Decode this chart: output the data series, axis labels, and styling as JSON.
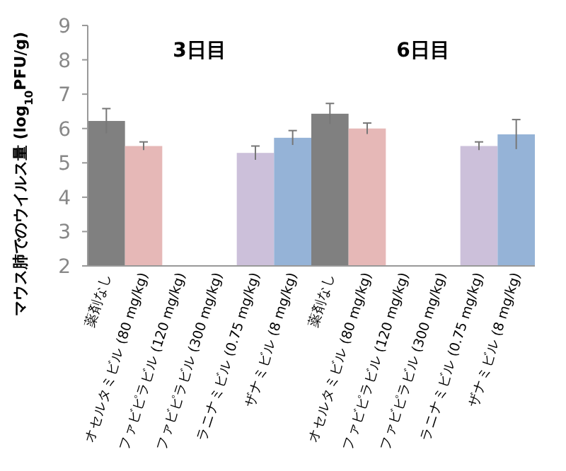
{
  "chart_data": {
    "type": "bar",
    "ylabel": "マウス肺でのウイルス量 (log$_{10}$PFU/g)",
    "categories": [
      "薬剤なし",
      "オセルタミビル (80 mg/kg)",
      "ファビピラビル (120 mg/kg)",
      "ファビピラビル (300 mg/kg)",
      "ラニナミビル (0.75 mg/kg)",
      "ザナミビル (8 mg/kg)",
      "薬剤なし",
      "オセルタミビル (80 mg/kg)",
      "ファビピラビル (120 mg/kg)",
      "ファビピラビル (300 mg/kg)",
      "ラニナミビル (0.75 mg/kg)",
      "ザナミビル (8 mg/kg)"
    ],
    "values": [
      6.22,
      5.49,
      null,
      null,
      5.29,
      5.73,
      6.43,
      6.0,
      null,
      null,
      5.49,
      5.83
    ],
    "errors": [
      0.36,
      0.12,
      null,
      null,
      0.2,
      0.21,
      0.3,
      0.16,
      null,
      null,
      0.12,
      0.43
    ],
    "colors": [
      "#808080",
      "#e6b8b7",
      null,
      null,
      "#ccc0da",
      "#95b3d7",
      "#808080",
      "#e6b8b7",
      null,
      null,
      "#ccc0da",
      "#95b3d7"
    ],
    "annotations": [
      "3日目",
      "6日目"
    ],
    "ylim": [
      2,
      9
    ],
    "yticks": [
      2,
      3,
      4,
      5,
      6,
      7,
      8,
      9
    ],
    "grid": false
  }
}
